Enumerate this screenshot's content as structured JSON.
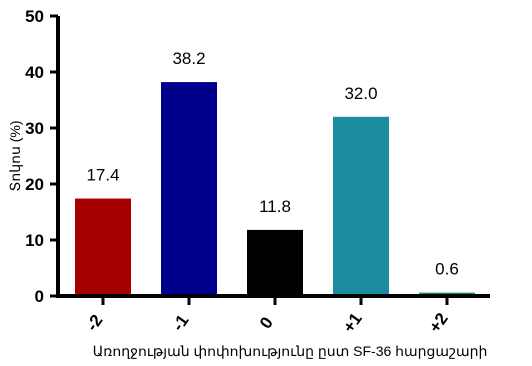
{
  "chart_data": {
    "type": "bar",
    "categories": [
      "-2",
      "-1",
      "0",
      "+1",
      "+2"
    ],
    "values": [
      17.4,
      38.2,
      11.8,
      32.0,
      0.6
    ],
    "value_labels": [
      "17.4",
      "38.2",
      "11.8",
      "32.0",
      "0.6"
    ],
    "colors": [
      "#a50000",
      "#00008c",
      "#000000",
      "#1a8ca0",
      "#1a8c5a"
    ],
    "ylabel": "Տոկոս (%)",
    "xlabel": "Առողջության փոփոխությունը ըստ SF-36 հարցաշարի",
    "ylim": [
      0,
      50
    ],
    "yticks": [
      0,
      10,
      20,
      30,
      40,
      50
    ],
    "grid": false,
    "legend": "none"
  }
}
